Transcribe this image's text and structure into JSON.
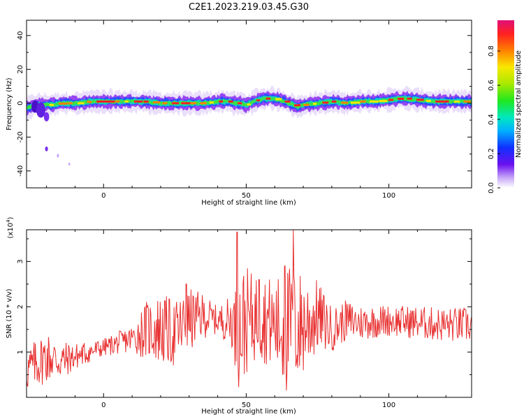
{
  "title": "C2E1.2023.219.03.45.G30",
  "chart_data": [
    {
      "type": "heatmap",
      "xlabel": "Height of straight line (km)",
      "ylabel": "Frequency (Hz)",
      "xlim": [
        -27,
        129
      ],
      "ylim": [
        -50,
        49
      ],
      "xticks": [
        0,
        50,
        100
      ],
      "yticks": [
        -40,
        -20,
        0,
        20,
        40
      ],
      "ridge": {
        "x": [
          -27,
          -24,
          -21,
          -18,
          -15,
          -12,
          -9,
          -5,
          0,
          5,
          10,
          15,
          20,
          25,
          30,
          35,
          40,
          44,
          46,
          48,
          50,
          54,
          58,
          62,
          65,
          68,
          70,
          75,
          80,
          85,
          90,
          95,
          100,
          105,
          110,
          115,
          120,
          125,
          129
        ],
        "y": [
          -3,
          -1,
          -1,
          -1,
          0,
          0,
          0,
          1,
          1,
          1,
          1,
          1,
          0,
          0,
          0,
          0,
          1,
          1,
          0,
          0,
          -1,
          2,
          3,
          2,
          0,
          -2,
          -1,
          0,
          1,
          0,
          1,
          1,
          2,
          3,
          2,
          1,
          1,
          1,
          1
        ]
      },
      "colorbar": {
        "label": "Normalized spectral amplitude",
        "ticks": [
          "0.0",
          "0.2",
          "0.4",
          "0.6",
          "0.8"
        ],
        "range": [
          0,
          0.98
        ]
      }
    },
    {
      "type": "line",
      "xlabel": "Height of straight line (km)",
      "ylabel": "SNR (10 * v/v)",
      "multiplier": "(x10",
      "multiplier_exp": "4",
      "multiplier_close": ")",
      "xlim": [
        -27,
        129
      ],
      "ylim": [
        0,
        3.7
      ],
      "xticks": [
        0,
        50,
        100
      ],
      "yticks": [
        1,
        2,
        3
      ],
      "color": "#e83030",
      "envelope": {
        "x": [
          -27,
          -20,
          -15,
          -10,
          -5,
          0,
          5,
          10,
          15,
          20,
          25,
          30,
          35,
          40,
          45,
          47,
          50,
          55,
          60,
          63,
          66,
          70,
          75,
          80,
          85,
          90,
          100,
          110,
          120,
          129
        ],
        "y": [
          0.6,
          0.9,
          0.8,
          0.9,
          1.0,
          1.1,
          1.2,
          1.3,
          1.5,
          1.5,
          1.4,
          1.7,
          1.8,
          1.7,
          1.7,
          1.4,
          1.7,
          1.8,
          1.6,
          1.5,
          1.5,
          1.6,
          1.8,
          1.5,
          1.7,
          1.65,
          1.7,
          1.65,
          1.6,
          1.6
        ]
      },
      "noise_amplitude": {
        "x": [
          -27,
          -20,
          -10,
          0,
          10,
          14,
          20,
          30,
          40,
          45,
          48,
          52,
          60,
          64,
          70,
          75,
          80,
          90,
          100,
          129
        ],
        "y": [
          0.5,
          0.6,
          0.3,
          0.2,
          0.3,
          0.6,
          0.8,
          0.7,
          0.3,
          0.6,
          1.4,
          1.0,
          1.0,
          1.5,
          1.2,
          0.8,
          0.5,
          0.4,
          0.35,
          0.4
        ]
      },
      "peaks": [
        {
          "x": 46.8,
          "y": 3.65
        },
        {
          "x": 66.5,
          "y": 3.7
        },
        {
          "x": 63.5,
          "y": 2.9
        },
        {
          "x": 54.5,
          "y": 2.6
        },
        {
          "x": 29.0,
          "y": 2.5
        }
      ]
    }
  ]
}
